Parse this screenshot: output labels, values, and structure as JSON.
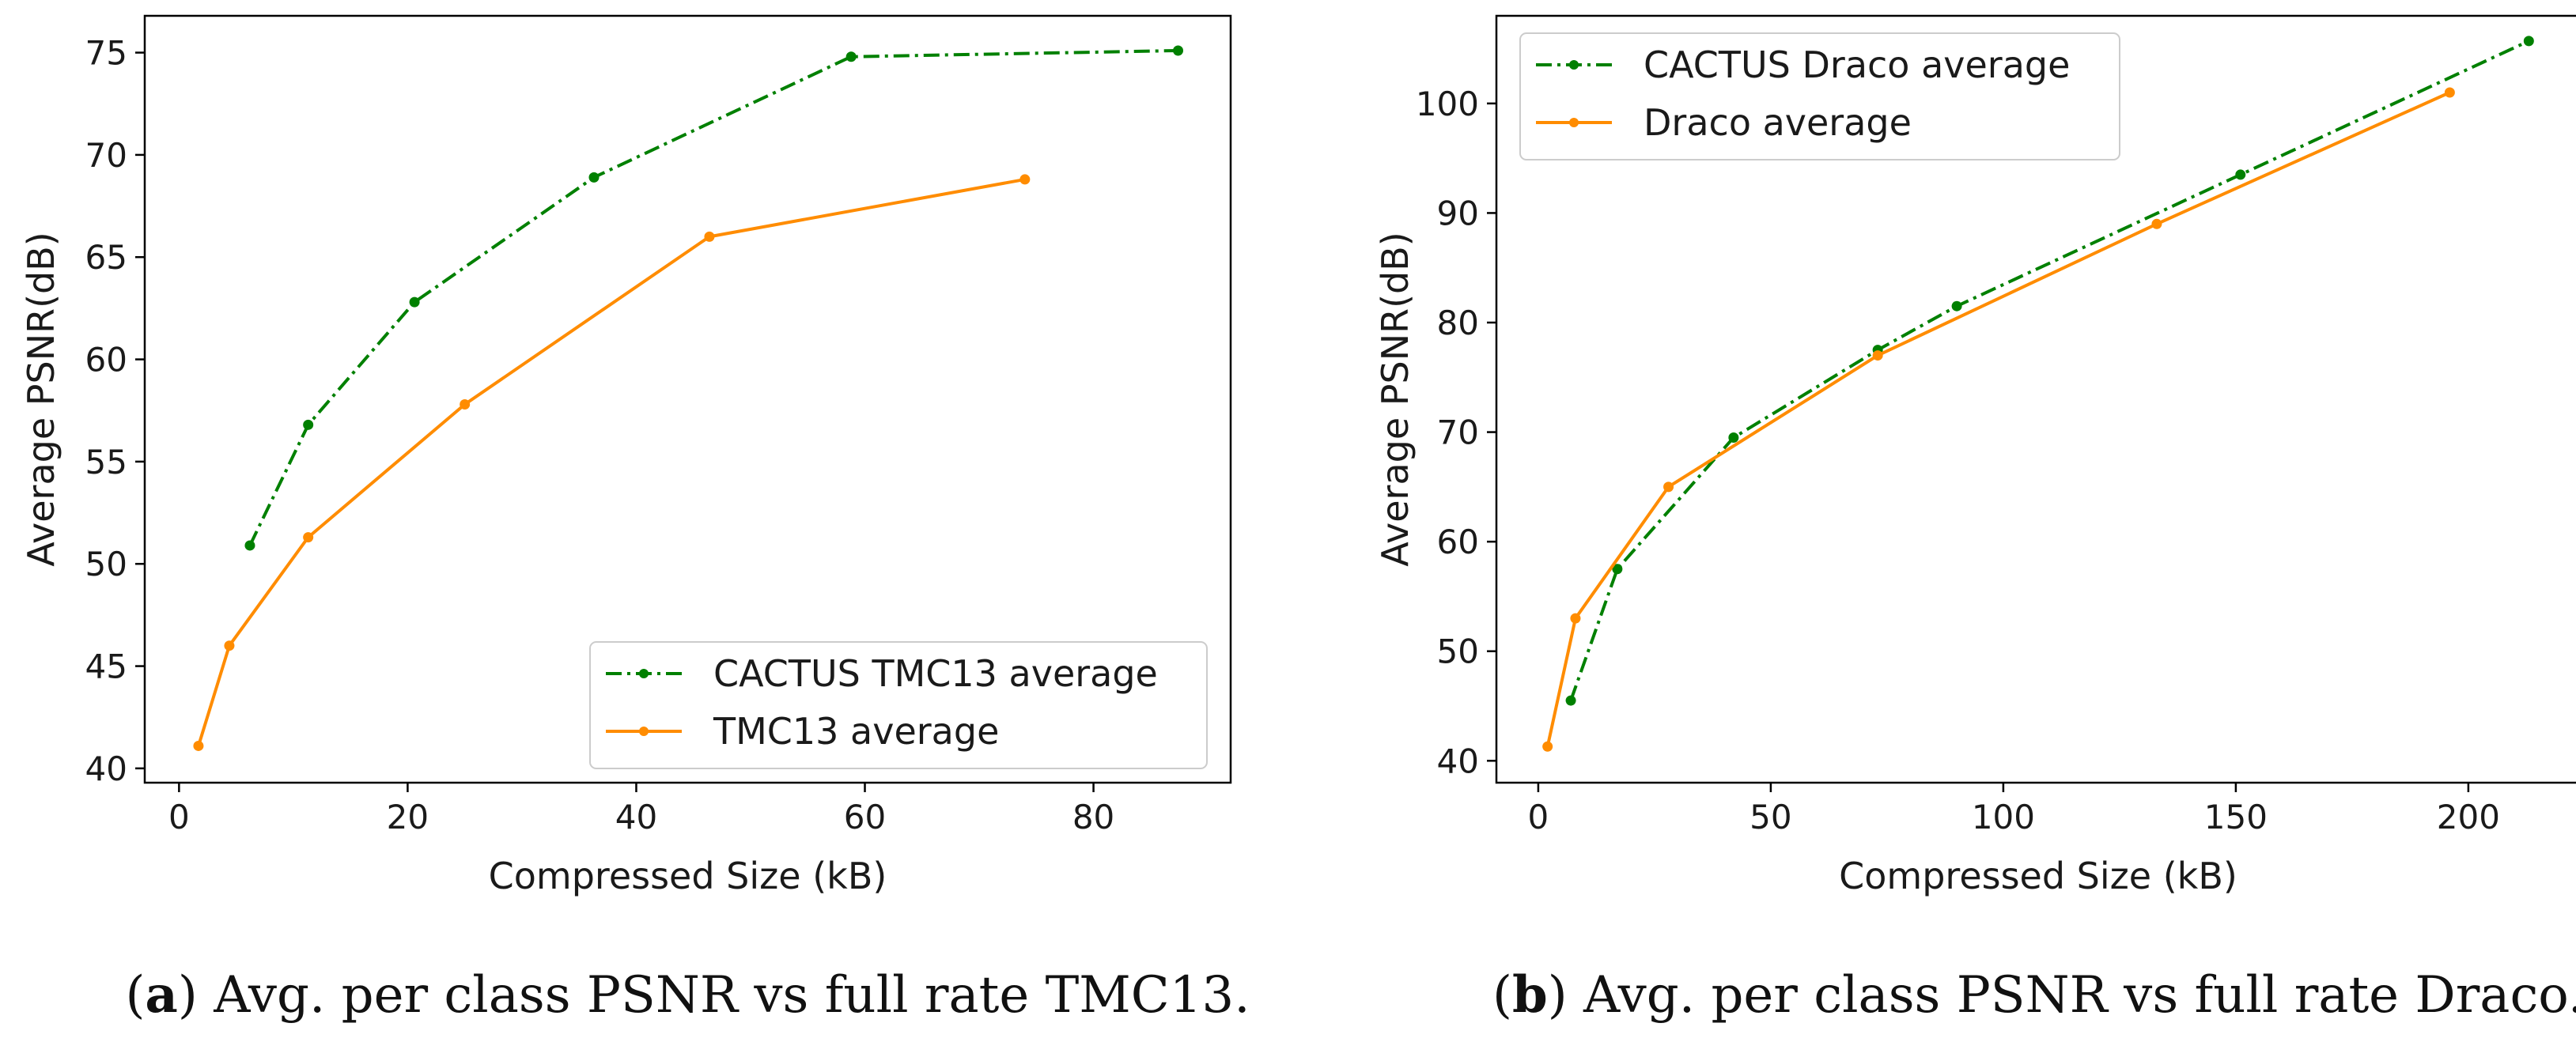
{
  "chart_data": [
    {
      "type": "line",
      "xlabel": "Compressed Size (kB)",
      "ylabel": "Average PSNR(dB)",
      "xlim": [
        -3,
        92
      ],
      "ylim": [
        39.3,
        76.8
      ],
      "xticks": [
        0,
        20,
        40,
        60,
        80
      ],
      "yticks": [
        40,
        45,
        50,
        55,
        60,
        65,
        70,
        75
      ],
      "grid": false,
      "legend_position": "lower-right",
      "series": [
        {
          "name": "CACTUS TMC13 average",
          "color": "#008000",
          "style": "dash-dot",
          "x": [
            6.2,
            11.3,
            20.6,
            36.3,
            58.8,
            87.4
          ],
          "y": [
            50.9,
            56.8,
            62.8,
            68.9,
            74.8,
            75.1
          ]
        },
        {
          "name": "TMC13 average",
          "color": "#ff8c00",
          "style": "solid",
          "x": [
            1.7,
            4.4,
            11.3,
            25.0,
            46.4,
            74.0
          ],
          "y": [
            41.1,
            46.0,
            51.3,
            57.8,
            66.0,
            68.8
          ]
        }
      ]
    },
    {
      "type": "line",
      "xlabel": "Compressed Size (kB)",
      "ylabel": "Average PSNR(dB)",
      "xlim": [
        -9,
        224
      ],
      "ylim": [
        38,
        108
      ],
      "xticks": [
        0,
        50,
        100,
        150,
        200
      ],
      "yticks": [
        40,
        50,
        60,
        70,
        80,
        90,
        100
      ],
      "grid": false,
      "legend_position": "upper-left",
      "series": [
        {
          "name": "CACTUS Draco average",
          "color": "#008000",
          "style": "dash-dot",
          "x": [
            7,
            17,
            42,
            73,
            90,
            151,
            213
          ],
          "y": [
            45.5,
            57.5,
            69.5,
            77.5,
            81.5,
            93.5,
            105.7
          ]
        },
        {
          "name": "Draco average",
          "color": "#ff8c00",
          "style": "solid",
          "x": [
            2,
            8,
            28,
            73,
            133,
            196
          ],
          "y": [
            41.3,
            53.0,
            65.0,
            77.0,
            89.0,
            101.0
          ]
        }
      ]
    }
  ],
  "captions": [
    {
      "label": "a",
      "text": ") Avg. per class PSNR vs full rate TMC13."
    },
    {
      "label": "b",
      "text": ") Avg. per class PSNR vs full rate Draco."
    }
  ]
}
